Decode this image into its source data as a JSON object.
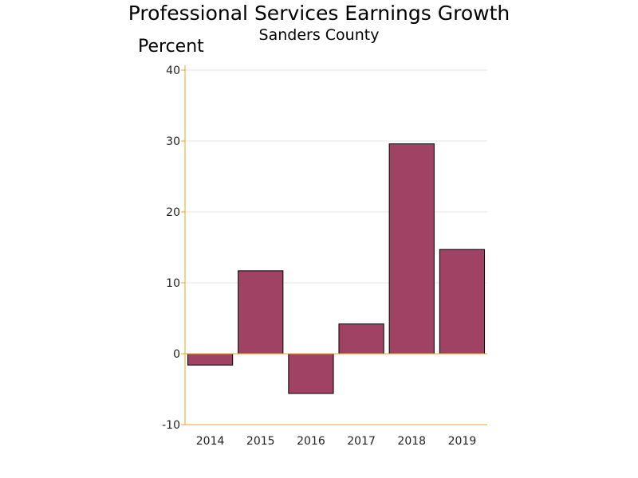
{
  "chart_data": {
    "type": "bar",
    "title": "Professional Services Earnings Growth",
    "subtitle": "Sanders County",
    "ylabel": "Percent",
    "xlabel": "",
    "categories": [
      "2014",
      "2015",
      "2016",
      "2017",
      "2018",
      "2019"
    ],
    "values": [
      -1.6,
      11.7,
      -5.6,
      4.2,
      29.6,
      14.7
    ],
    "ylim": [
      -10,
      40
    ],
    "yticks": [
      -10,
      0,
      10,
      20,
      30,
      40
    ],
    "grid": true,
    "legend": "none",
    "colors": {
      "bar_fill": "#a04264",
      "bar_stroke": "#000000",
      "axis": "#f0a020",
      "grid": "#e6e6e6"
    }
  }
}
